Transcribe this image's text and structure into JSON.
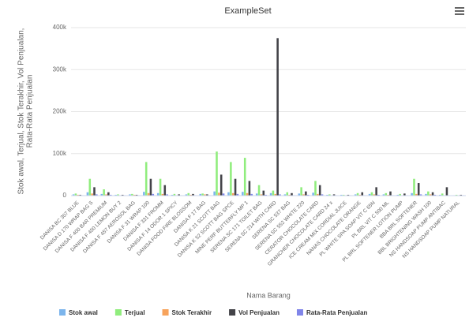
{
  "chart_data": {
    "type": "bar",
    "title": "ExampleSet",
    "x_label": "Nama Barang",
    "y_label": "Stok awal, Terjual, Stok Terakhir, Vol Penjualan, Rata-Rata Penjualan",
    "categories": [
      "DANISA BC 307 BLUE",
      "DANISA D 170 WRAP BAG S",
      "DANISA F 400 BAR PREMIUM",
      "DANISA F 450 LEMON BUY 2",
      "DANISA F 457 AEROSOL BAG",
      "DANISA F 31 WRAP 100",
      "DANISA F 331 FROMM",
      "DANISA F 14 ODOR 1 SPICY",
      "DANISA FOOD FIRE BLOSSOM",
      "DANISA F 17 BAG",
      "DANISA K 21 SCOTT BAG",
      "DANISA K 52 SCOTT BAG SPCE",
      "MINE PERF BUTTERFLY MP 1",
      "SERENA SC 171 TOILET BAG",
      "SERENA SC 214 WITH CARD",
      "SERENA SC 537 BAG",
      "SERENA SC 552 WHITE 220",
      "CERATOR CHOCOLATE CARD",
      "GRANCHER CHOCOLATE CARD 24 x",
      "ICE CREAM MIX CORDIAL JUICE",
      "NANAS CHOCOLATE ORANGE",
      "PL WHITE SPA SOAP VIT C 65N",
      "PL BRL VIT C 500 ML",
      "PL BRL SOFTENER LOTION PUMP",
      "BBA BRL SOFTENER",
      "BBL BRIGHTENING WASH 100",
      "NS HANDSOAP PUMP ANTIBAC",
      "NS HANDSOAP PUMP NATURAL"
    ],
    "series": [
      {
        "name": "Stok awal",
        "color": "#7cb5ec",
        "values": [
          3000,
          8000,
          4000,
          2000,
          3000,
          9000,
          6000,
          2000,
          3000,
          4000,
          10000,
          8000,
          9000,
          5000,
          6000,
          3000,
          5000,
          7000,
          2000,
          2000,
          3000,
          4000,
          3000,
          2000,
          6000,
          4000,
          2000,
          1000
        ]
      },
      {
        "name": "Terjual",
        "color": "#90ed7d",
        "values": [
          5000,
          40000,
          15000,
          3000,
          4000,
          80000,
          40000,
          4000,
          6000,
          5000,
          105000,
          80000,
          90000,
          25000,
          12000,
          8000,
          20000,
          35000,
          3000,
          2000,
          6000,
          8000,
          6000,
          4000,
          40000,
          10000,
          5000,
          2000
        ]
      },
      {
        "name": "Stok Terakhir",
        "color": "#f7a35c",
        "values": [
          2000,
          5000,
          3000,
          1000,
          2000,
          6000,
          4000,
          1000,
          2000,
          3000,
          7000,
          6000,
          6000,
          3000,
          4000,
          2000,
          3000,
          4000,
          1000,
          1000,
          2000,
          3000,
          2000,
          1000,
          4000,
          3000,
          1000,
          1000
        ]
      },
      {
        "name": "Vol Penjualan",
        "color": "#434348",
        "values": [
          2000,
          20000,
          8000,
          2000,
          2000,
          40000,
          25000,
          3000,
          4000,
          3000,
          50000,
          40000,
          35000,
          12000,
          375000,
          6000,
          10000,
          25000,
          3000,
          2000,
          8000,
          20000,
          10000,
          5000,
          30000,
          8000,
          20000,
          2000
        ]
      },
      {
        "name": "Rata-Rata Penjualan",
        "color": "#8085e9",
        "values": [
          1000,
          3000,
          2000,
          1000,
          1000,
          4000,
          3000,
          1000,
          1000,
          1000,
          5000,
          4000,
          4000,
          2000,
          3000,
          1000,
          2000,
          3000,
          1000,
          1000,
          1000,
          2000,
          1000,
          1000,
          3000,
          2000,
          1000,
          1000
        ]
      }
    ],
    "ylim": [
      0,
      400000
    ],
    "yticks": [
      0,
      {
        "value": 100000,
        "label": "100k"
      },
      {
        "value": 200000,
        "label": "200k"
      },
      {
        "value": 300000,
        "label": "300k"
      },
      {
        "value": 400000,
        "label": "400k"
      }
    ],
    "grid": true,
    "legend": "bottom"
  }
}
